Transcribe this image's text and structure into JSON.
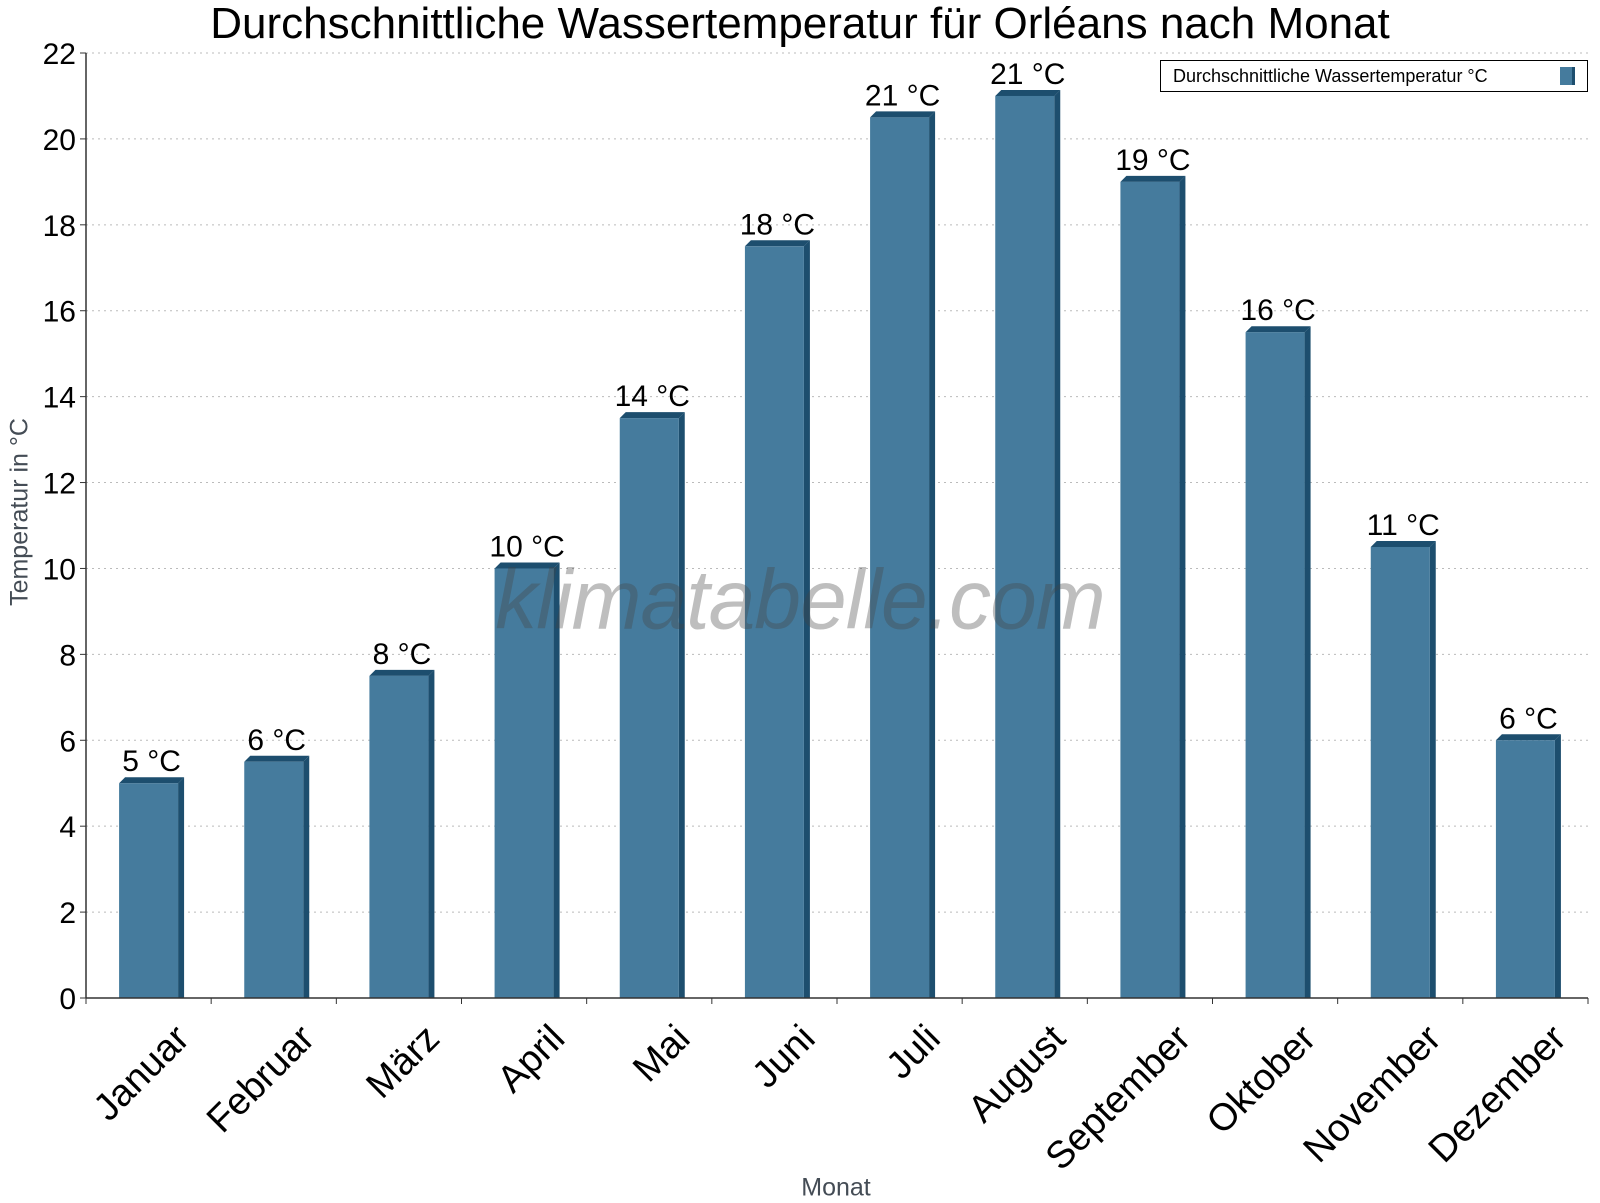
{
  "chart_data": {
    "type": "bar",
    "title": "Durchschnittliche Wassertemperatur für Orléans nach Monat",
    "xlabel": "Monat",
    "ylabel": "Temperatur in °C",
    "categories": [
      "Januar",
      "Februar",
      "März",
      "April",
      "Mai",
      "Juni",
      "Juli",
      "August",
      "September",
      "Oktober",
      "November",
      "Dezember"
    ],
    "series": [
      {
        "name": "Durchschnittliche Wassertemperatur °C",
        "values": [
          5,
          5.5,
          7.5,
          10,
          13.5,
          17.5,
          20.5,
          21,
          19,
          15.5,
          10.5,
          6
        ],
        "labels": [
          "5 °C",
          "6 °C",
          "8 °C",
          "10 °C",
          "14 °C",
          "18 °C",
          "21 °C",
          "21 °C",
          "19 °C",
          "16 °C",
          "11 °C",
          "6 °C"
        ]
      }
    ],
    "ylim": [
      0,
      22
    ],
    "yticks": [
      0,
      2,
      4,
      6,
      8,
      10,
      12,
      14,
      16,
      18,
      20,
      22
    ],
    "grid": true,
    "legend_position": "top-right",
    "colors": {
      "bar": "#457b9d",
      "bar_dark": "#1d4e6e",
      "grid": "#bbbbbb"
    }
  },
  "watermark": "klimatabelle.com"
}
